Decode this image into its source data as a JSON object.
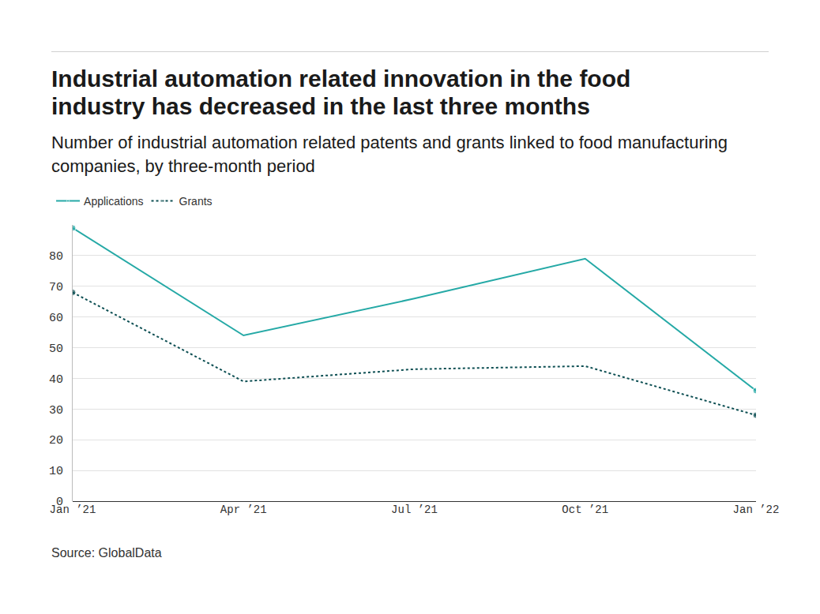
{
  "chart_data": {
    "type": "line",
    "title": "Industrial automation related innovation in the food industry has decreased in the last three months",
    "subtitle": "Number of industrial automation related patents and grants linked to food manufacturing companies, by three-month period",
    "source": "Source: GlobalData",
    "categories": [
      "Jan ’21",
      "Apr ’21",
      "Jul ’21",
      "Oct ’21",
      "Jan ’22"
    ],
    "series": [
      {
        "name": "Applications",
        "color": "#25a9a6",
        "values": [
          89,
          54,
          66,
          79,
          36
        ],
        "line_style": "solid",
        "marker": "endpoints"
      },
      {
        "name": "Grants",
        "color": "#0d4f53",
        "values": [
          68,
          39,
          43,
          44,
          28
        ],
        "line_style": "dotted",
        "marker": "endpoints"
      }
    ],
    "ylim": [
      0,
      90
    ],
    "yticks": [
      0,
      10,
      20,
      30,
      40,
      50,
      60,
      70,
      80
    ],
    "grid": true,
    "legend": "top-left"
  }
}
